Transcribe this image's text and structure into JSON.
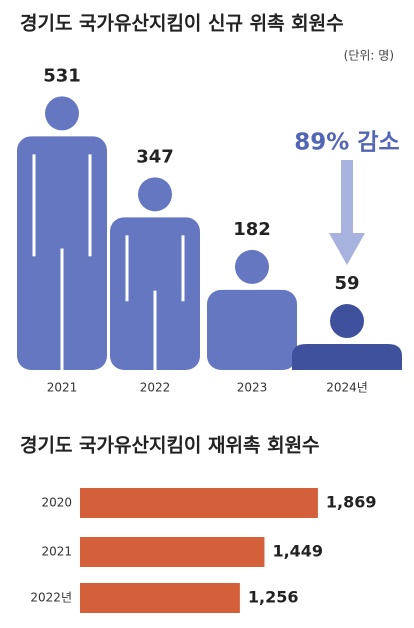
{
  "chart_data": [
    {
      "type": "pictograph",
      "title": "경기도 국가유산지킴이 신규 위촉 회원수",
      "subtitle": "(단위: 명)",
      "categories": [
        "2021",
        "2022",
        "2023",
        "2024년"
      ],
      "values": [
        531,
        347,
        182,
        59
      ],
      "colors": [
        "#6677c2",
        "#6677c2",
        "#6677c2",
        "#3f519d"
      ],
      "annotation": "89% 감소",
      "annotation_color": "#5266b4",
      "arrow_color": "#a7b2de"
    },
    {
      "type": "bar",
      "orientation": "horizontal",
      "title": "경기도 국가유산지킴이 재위촉 회원수",
      "categories": [
        "2020",
        "2021",
        "2022년"
      ],
      "values": [
        1869,
        1449,
        1256
      ],
      "value_labels": [
        "1,869",
        "1,449",
        "1,256"
      ],
      "color": "#d3603a"
    }
  ]
}
